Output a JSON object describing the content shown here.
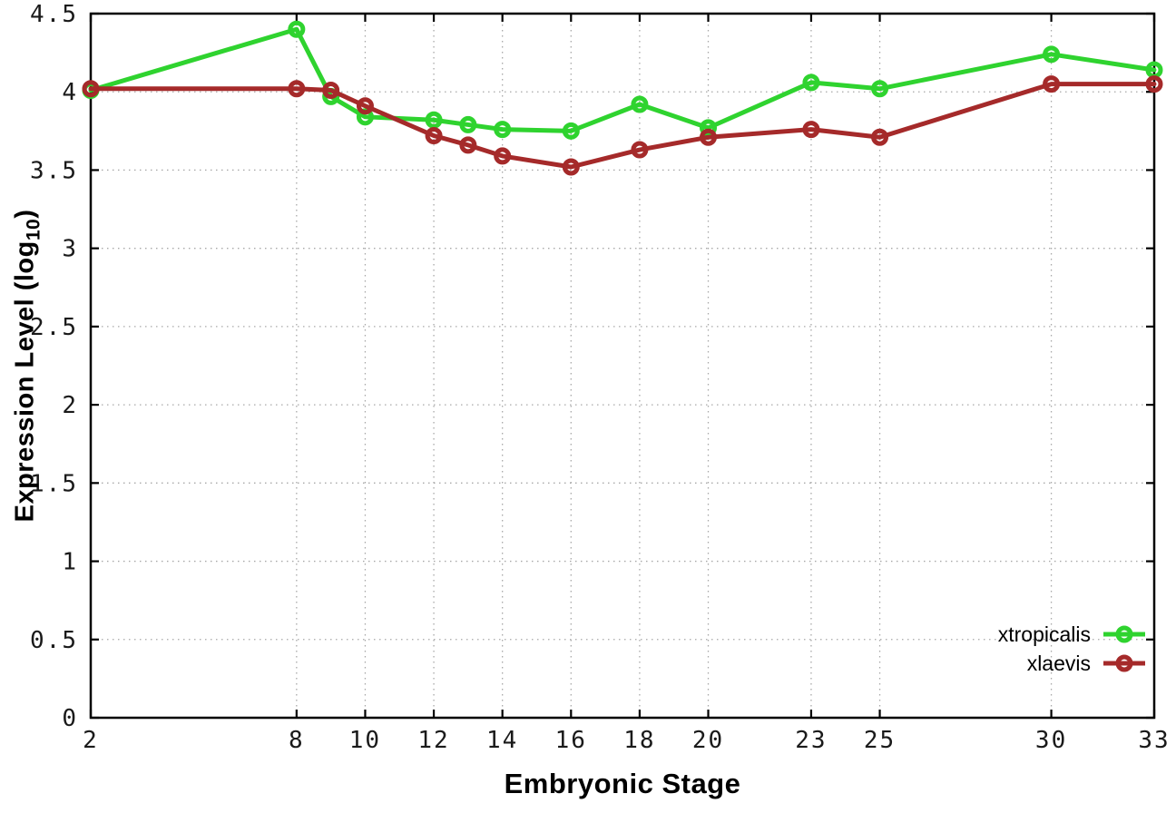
{
  "axes": {
    "xlabel": "Embryonic Stage",
    "ylabel_main": "Expression Level (log",
    "ylabel_sub": "10",
    "ylabel_close": ")"
  },
  "legend": {
    "position": "bottom-right-inside",
    "entries": [
      {
        "label": "xtropicalis",
        "color": "#2fd32f"
      },
      {
        "label": "xlaevis",
        "color": "#a52a2a"
      }
    ]
  },
  "style": {
    "grid_color": "#a8a8a8",
    "border_color": "#000000",
    "background": "#ffffff",
    "marker": "open-circle"
  },
  "chart_data": {
    "type": "line",
    "title": "",
    "xlabel": "Embryonic Stage",
    "ylabel": "Expression Level (log10)",
    "x": [
      2,
      8,
      9,
      10,
      12,
      13,
      14,
      16,
      18,
      20,
      23,
      25,
      30,
      33
    ],
    "x_ticks": [
      2,
      8,
      10,
      12,
      14,
      16,
      18,
      20,
      23,
      25,
      30,
      33
    ],
    "y_ticks": [
      0,
      0.5,
      1,
      1.5,
      2,
      2.5,
      3,
      3.5,
      4,
      4.5
    ],
    "xlim": [
      2,
      33
    ],
    "ylim": [
      0,
      4.5
    ],
    "grid": true,
    "legend_position": "bottom-right",
    "series": [
      {
        "name": "xtropicalis",
        "color": "#2fd32f",
        "values": [
          4.01,
          4.4,
          3.97,
          3.84,
          3.82,
          3.79,
          3.76,
          3.75,
          3.92,
          3.77,
          4.06,
          4.02,
          4.24,
          4.14
        ]
      },
      {
        "name": "xlaevis",
        "color": "#a52a2a",
        "values": [
          4.02,
          4.02,
          4.01,
          3.91,
          3.72,
          3.66,
          3.59,
          3.52,
          3.63,
          3.71,
          3.76,
          3.71,
          4.05,
          4.05
        ]
      }
    ]
  }
}
